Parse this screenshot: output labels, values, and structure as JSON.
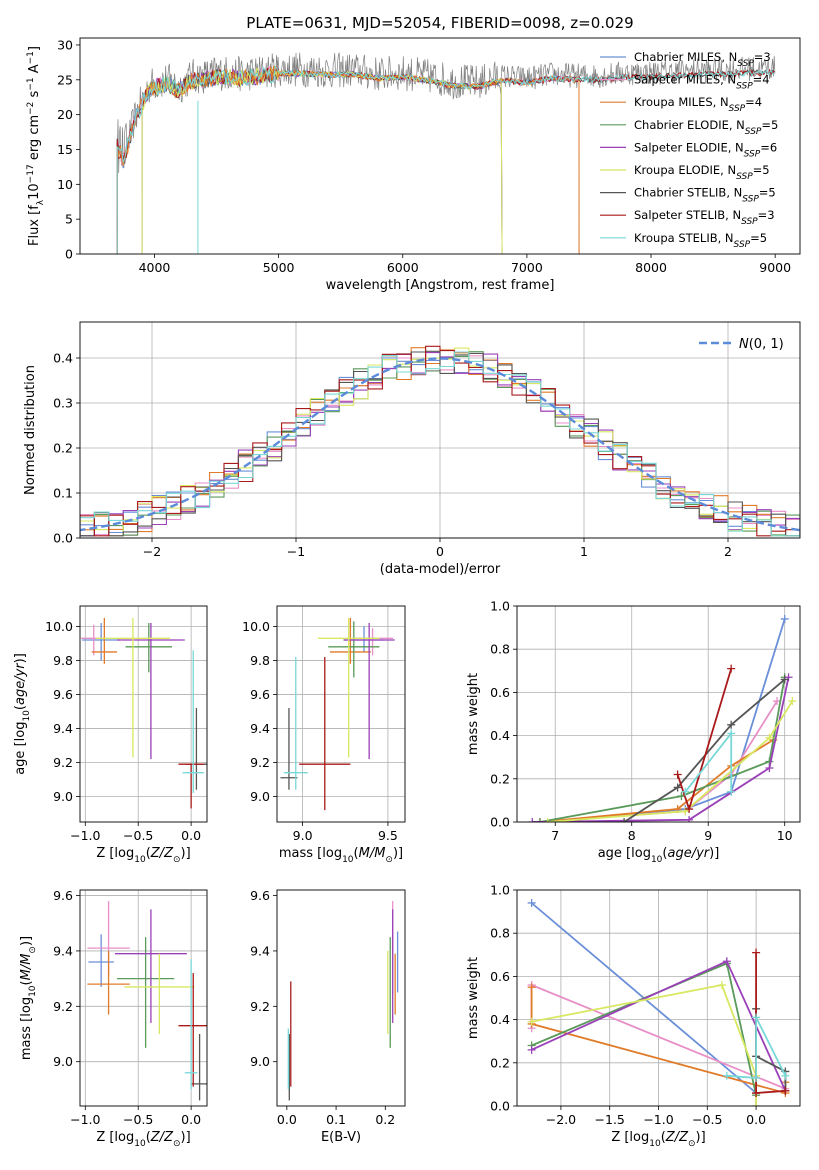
{
  "figure_title": "PLATE=0631, MJD=52054, FIBERID=0098, z=0.029",
  "series_colors": [
    "#6a8fd8",
    "#e88fc8",
    "#e07b2a",
    "#5a9a5a",
    "#9a40b8",
    "#d8e860",
    "#555555",
    "#aa1a1a",
    "#78d8d8"
  ],
  "chart_data": [
    {
      "id": "spectrum",
      "type": "line",
      "xlabel": "wavelength [Angstrom, rest frame]",
      "ylabel": "Flux [f_λ10^-17 erg cm^-2 s^-1 A^-1]",
      "xlim": [
        3400,
        9200
      ],
      "ylim": [
        0,
        31
      ],
      "xticks": [
        4000,
        5000,
        6000,
        7000,
        8000,
        9000
      ],
      "yticks": [
        0,
        5,
        10,
        15,
        20,
        25,
        30
      ],
      "grid": false,
      "legend": "top-right",
      "legend_entries": [
        "Chabrier MILES, N_SSP=3",
        "Salpeter MILES, N_SSP=4",
        "Kroupa MILES, N_SSP=4",
        "Chabrier ELODIE, N_SSP=5",
        "Salpeter ELODIE, N_SSP=6",
        "Kroupa ELODIE, N_SSP=5",
        "Chabrier STELIB, N_SSP=5",
        "Salpeter STELIB, N_SSP=3",
        "Kroupa STELIB, N_SSP=5"
      ],
      "data_curve": {
        "x": [
          3700,
          3750,
          3800,
          3850,
          3900,
          3950,
          4000,
          4100,
          4200,
          4300,
          4400,
          4500,
          4600,
          4700,
          4800,
          4900,
          5000,
          5200,
          5400,
          5600,
          5800,
          6000,
          6200,
          6400,
          6600,
          6800,
          7000,
          7200,
          7400,
          7600,
          7800,
          8000,
          8200,
          8400,
          8600,
          8800,
          9000
        ],
        "y": [
          16,
          14,
          17,
          20,
          22,
          24,
          24.5,
          25,
          24,
          25.5,
          25.5,
          26,
          26,
          25.8,
          26,
          26.2,
          26.5,
          26.5,
          26.3,
          26.4,
          25.8,
          26,
          25.5,
          24.8,
          24.6,
          25.5,
          25.2,
          25.8,
          25.6,
          25.6,
          26,
          26,
          26.2,
          26.4,
          26.4,
          26.6,
          26.7
        ]
      },
      "model_edges": {
        "MILES_drop_at": 7420,
        "ELODIE_drop_at": 6800,
        "ELODIE_start": 3900
      }
    },
    {
      "id": "residuals",
      "type": "line",
      "xlabel": "(data-model)/error",
      "ylabel": "Normed distribution",
      "xlim": [
        -2.5,
        2.5
      ],
      "ylim": [
        0,
        0.48
      ],
      "xticks": [
        -2,
        -1,
        0,
        1,
        2
      ],
      "yticks": [
        0.0,
        0.1,
        0.2,
        0.3,
        0.4
      ],
      "grid": true,
      "legend": "top-right",
      "legend_entries": [
        "N(0,1)"
      ],
      "bin_width": 0.1
    },
    {
      "id": "age_vs_Z",
      "type": "scatter",
      "xlabel": "Z [log10(Z/Z_sun)]",
      "ylabel": "age [log10(age/yr)]",
      "xlim": [
        -1.05,
        0.15
      ],
      "ylim": [
        8.85,
        10.12
      ],
      "xticks": [
        -1.0,
        -0.5,
        0.0
      ],
      "yticks": [
        9.0,
        9.2,
        9.4,
        9.6,
        9.8,
        10.0
      ],
      "grid": true,
      "points": [
        {
          "x": -0.85,
          "y": 9.92,
          "xe": 0.18,
          "ye_lo": 0.12,
          "ye_hi": 0.1
        },
        {
          "x": -0.92,
          "y": 9.93,
          "xe": 0.12,
          "ye_lo": 0.1,
          "ye_hi": 0.08
        },
        {
          "x": -0.82,
          "y": 9.85,
          "xe": 0.12,
          "ye_lo": 0.07,
          "ye_hi": 0.2
        },
        {
          "x": -0.4,
          "y": 9.88,
          "xe": 0.22,
          "ye_lo": 0.15,
          "ye_hi": 0.14
        },
        {
          "x": -0.38,
          "y": 9.92,
          "xe": 0.32,
          "ye_lo": 0.7,
          "ye_hi": 0.1
        },
        {
          "x": -0.55,
          "y": 9.93,
          "xe": 0.35,
          "ye_lo": 0.7,
          "ye_hi": 0.12
        },
        {
          "x": 0.05,
          "y": 9.19,
          "xe": 0.1,
          "ye_lo": 0.15,
          "ye_hi": 0.33
        },
        {
          "x": 0.0,
          "y": 9.19,
          "xe": 0.12,
          "ye_lo": 0.26,
          "ye_hi": 0.0
        },
        {
          "x": 0.02,
          "y": 9.14,
          "xe": 0.1,
          "ye_lo": 0.12,
          "ye_hi": 0.72
        }
      ]
    },
    {
      "id": "age_vs_mass",
      "type": "scatter",
      "xlabel": "mass [log10(M/M_sun)]",
      "ylabel": "",
      "xlim": [
        8.85,
        9.6
      ],
      "ylim": [
        8.85,
        10.12
      ],
      "xticks": [
        9.0,
        9.5
      ],
      "yticks": [
        9.0,
        9.2,
        9.4,
        9.6,
        9.8,
        10.0
      ],
      "grid": true,
      "points": [
        {
          "x": 9.36,
          "y": 9.92,
          "xe": 0.12,
          "ye_lo": 0.07,
          "ye_hi": 0.08
        },
        {
          "x": 9.41,
          "y": 9.93,
          "xe": 0.12,
          "ye_lo": 0.1,
          "ye_hi": 0.06
        },
        {
          "x": 9.28,
          "y": 9.85,
          "xe": 0.12,
          "ye_lo": 0.07,
          "ye_hi": 0.2
        },
        {
          "x": 9.3,
          "y": 9.88,
          "xe": 0.15,
          "ye_lo": 0.18,
          "ye_hi": 0.15
        },
        {
          "x": 9.39,
          "y": 9.92,
          "xe": 0.15,
          "ye_lo": 0.7,
          "ye_hi": 0.1
        },
        {
          "x": 9.27,
          "y": 9.93,
          "xe": 0.18,
          "ye_lo": 0.7,
          "ye_hi": 0.12
        },
        {
          "x": 8.92,
          "y": 9.11,
          "xe": 0.05,
          "ye_lo": 0.07,
          "ye_hi": 0.41
        },
        {
          "x": 9.13,
          "y": 9.19,
          "xe": 0.15,
          "ye_lo": 0.27,
          "ye_hi": 0.63
        },
        {
          "x": 8.96,
          "y": 9.14,
          "xe": 0.07,
          "ye_lo": 0.1,
          "ye_hi": 0.68
        }
      ]
    },
    {
      "id": "mass_weight_vs_age",
      "type": "line",
      "xlabel": "age [log10(age/yr)]",
      "ylabel": "mass weight",
      "xlim": [
        6.5,
        10.2
      ],
      "ylim": [
        0,
        1.0
      ],
      "xticks": [
        7,
        8,
        9,
        10
      ],
      "yticks": [
        0.0,
        0.2,
        0.4,
        0.6,
        0.8,
        1.0
      ],
      "grid": true,
      "series": [
        {
          "x": [
            7.0,
            8.7,
            9.3,
            10.0
          ],
          "y": [
            0.0,
            0.06,
            0.14,
            0.94
          ]
        },
        {
          "x": [
            6.8,
            8.7,
            9.3,
            9.9
          ],
          "y": [
            0.0,
            0.05,
            0.22,
            0.56
          ]
        },
        {
          "x": [
            6.8,
            8.6,
            9.3,
            9.85
          ],
          "y": [
            0.0,
            0.06,
            0.26,
            0.38
          ]
        },
        {
          "x": [
            6.8,
            8.65,
            9.8,
            10.0
          ],
          "y": [
            0.0,
            0.12,
            0.28,
            0.67
          ]
        },
        {
          "x": [
            6.7,
            8.75,
            9.8,
            10.05
          ],
          "y": [
            0.0,
            0.01,
            0.25,
            0.67
          ]
        },
        {
          "x": [
            6.9,
            8.7,
            9.8,
            10.1
          ],
          "y": [
            0.0,
            0.05,
            0.39,
            0.56
          ]
        },
        {
          "x": [
            7.9,
            8.6,
            9.3,
            10.0
          ],
          "y": [
            0.0,
            0.16,
            0.45,
            0.66
          ]
        },
        {
          "x": [
            8.6,
            8.75,
            9.3
          ],
          "y": [
            0.22,
            0.06,
            0.71
          ]
        },
        {
          "x": [
            8.7,
            9.3,
            9.3
          ],
          "y": [
            0.14,
            0.41,
            0.14
          ]
        }
      ]
    },
    {
      "id": "mass_vs_Z",
      "type": "scatter",
      "xlabel": "Z [log10(Z/Z_sun)]",
      "ylabel": "mass [log10(M/M_sun)]",
      "xlim": [
        -1.05,
        0.15
      ],
      "ylim": [
        8.84,
        9.62
      ],
      "xticks": [
        -1.0,
        -0.5,
        0.0
      ],
      "yticks": [
        9.0,
        9.2,
        9.4,
        9.6
      ],
      "grid": true,
      "points": [
        {
          "x": -0.85,
          "y": 9.36,
          "xe": 0.12,
          "ye_lo": 0.09,
          "ye_hi": 0.1
        },
        {
          "x": -0.78,
          "y": 9.41,
          "xe": 0.2,
          "ye_lo": 0.1,
          "ye_hi": 0.17
        },
        {
          "x": -0.78,
          "y": 9.28,
          "xe": 0.2,
          "ye_lo": 0.11,
          "ye_hi": 0.12
        },
        {
          "x": -0.43,
          "y": 9.3,
          "xe": 0.27,
          "ye_lo": 0.25,
          "ye_hi": 0.15
        },
        {
          "x": -0.38,
          "y": 9.39,
          "xe": 0.34,
          "ye_lo": 0.25,
          "ye_hi": 0.16
        },
        {
          "x": -0.3,
          "y": 9.27,
          "xe": 0.33,
          "ye_lo": 0.17,
          "ye_hi": 0.12
        },
        {
          "x": 0.08,
          "y": 8.92,
          "xe": 0.08,
          "ye_lo": 0.06,
          "ye_hi": 0.18
        },
        {
          "x": 0.02,
          "y": 9.13,
          "xe": 0.14,
          "ye_lo": 0.22,
          "ye_hi": 0.19
        },
        {
          "x": 0.0,
          "y": 8.96,
          "xe": 0.06,
          "ye_lo": 0.06,
          "ye_hi": 0.41
        }
      ]
    },
    {
      "id": "mass_vs_EBV",
      "type": "scatter",
      "xlabel": "E(B-V)",
      "ylabel": "",
      "xlim": [
        -0.02,
        0.24
      ],
      "ylim": [
        8.84,
        9.62
      ],
      "xticks": [
        0.0,
        0.1,
        0.2
      ],
      "yticks": [
        9.0,
        9.2,
        9.4,
        9.6
      ],
      "grid": false,
      "points": [
        {
          "x": 0.225,
          "y": 9.36,
          "ye_lo": 0.11,
          "ye_hi": 0.11
        },
        {
          "x": 0.215,
          "y": 9.41,
          "ye_lo": 0.17,
          "ye_hi": 0.17
        },
        {
          "x": 0.22,
          "y": 9.28,
          "ye_lo": 0.11,
          "ye_hi": 0.11
        },
        {
          "x": 0.21,
          "y": 9.3,
          "ye_lo": 0.25,
          "ye_hi": 0.15
        },
        {
          "x": 0.215,
          "y": 9.39,
          "ye_lo": 0.25,
          "ye_hi": 0.16
        },
        {
          "x": 0.205,
          "y": 9.27,
          "ye_lo": 0.17,
          "ye_hi": 0.13
        },
        {
          "x": 0.005,
          "y": 8.92,
          "ye_lo": 0.06,
          "ye_hi": 0.18
        },
        {
          "x": 0.008,
          "y": 9.13,
          "ye_lo": 0.22,
          "ye_hi": 0.16
        },
        {
          "x": 0.003,
          "y": 8.96,
          "ye_lo": 0.06,
          "ye_hi": 0.16
        }
      ]
    },
    {
      "id": "mass_weight_vs_Z",
      "type": "line",
      "xlabel": "Z [log10(Z/Z_sun)]",
      "ylabel": "mass weight",
      "xlim": [
        -2.45,
        0.45
      ],
      "ylim": [
        0,
        1.0
      ],
      "xticks": [
        -2.0,
        -1.5,
        -1.0,
        -0.5,
        0.0
      ],
      "yticks": [
        0.0,
        0.2,
        0.4,
        0.6,
        0.8,
        1.0
      ],
      "grid": true,
      "series": [
        {
          "x": [
            -2.3,
            0.0,
            0.0
          ],
          "y": [
            0.94,
            0.06,
            0.0
          ]
        },
        {
          "x": [
            -2.3,
            -2.3,
            0.3
          ],
          "y": [
            0.36,
            0.56,
            0.08
          ]
        },
        {
          "x": [
            -2.3,
            -2.3,
            0.3,
            0.3
          ],
          "y": [
            0.55,
            0.38,
            0.06,
            0.11
          ]
        },
        {
          "x": [
            -2.3,
            -0.3,
            0.0
          ],
          "y": [
            0.28,
            0.66,
            0.05
          ]
        },
        {
          "x": [
            -2.3,
            -0.3,
            0.3
          ],
          "y": [
            0.26,
            0.67,
            0.07
          ]
        },
        {
          "x": [
            -2.3,
            -0.35,
            0.0,
            0.0
          ],
          "y": [
            0.39,
            0.56,
            0.14,
            0.0
          ]
        },
        {
          "x": [
            0.0,
            0.0,
            0.3,
            0.3
          ],
          "y": [
            0.45,
            0.23,
            0.16,
            0.07
          ]
        },
        {
          "x": [
            0.0,
            0.0,
            0.3
          ],
          "y": [
            0.71,
            0.06,
            0.07
          ]
        },
        {
          "x": [
            -0.3,
            0.0,
            0.0,
            0.3
          ],
          "y": [
            0.14,
            0.13,
            0.41,
            0.14
          ]
        }
      ]
    }
  ]
}
